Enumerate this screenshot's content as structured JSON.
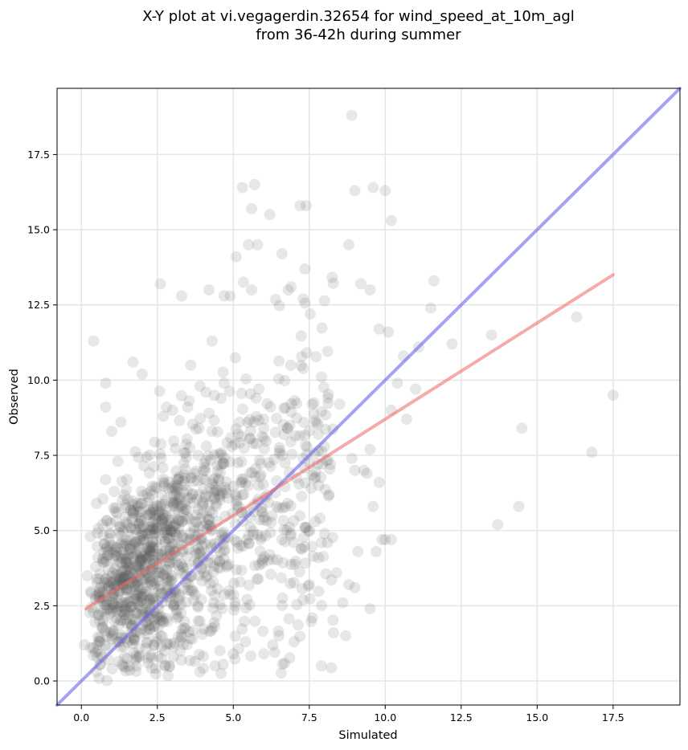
{
  "chart_data": {
    "type": "scatter",
    "title_lines": [
      "X-Y plot at vi.vegagerdin.32654 for wind_speed_at_10m_agl",
      "from 36-42h during summer"
    ],
    "xlabel": "Simulated",
    "ylabel": "Observed",
    "xlim": [
      -0.8,
      19.7
    ],
    "ylim": [
      -0.8,
      19.7
    ],
    "xticks": [
      0.0,
      2.5,
      5.0,
      7.5,
      10.0,
      12.5,
      15.0,
      17.5
    ],
    "yticks": [
      0.0,
      2.5,
      5.0,
      7.5,
      10.0,
      12.5,
      15.0,
      17.5
    ],
    "xtick_labels": [
      "0.0",
      "2.5",
      "5.0",
      "7.5",
      "10.0",
      "12.5",
      "15.0",
      "17.5"
    ],
    "ytick_labels": [
      "0.0",
      "2.5",
      "5.0",
      "7.5",
      "10.0",
      "12.5",
      "15.0",
      "17.5"
    ],
    "grid": true,
    "point_color": "#555555",
    "point_alpha": 0.14,
    "identity_line": {
      "x": [
        -0.8,
        19.7
      ],
      "y": [
        -0.8,
        19.7
      ],
      "color": "#6666ee"
    },
    "regression_line": {
      "x": [
        0.15,
        17.5
      ],
      "y": [
        2.4,
        13.5
      ],
      "color": "#ee6666"
    },
    "points": {
      "x": [
        8.9,
        5.7,
        5.3,
        9.6,
        10.0,
        10.2,
        6.2,
        5.6,
        5.8,
        5.1,
        6.6,
        5.5,
        3.3,
        7.2,
        7.4,
        7.3,
        4.2,
        2.6,
        4.7,
        4.9,
        5.6,
        6.9,
        9.5,
        9.2,
        8.8,
        9.0,
        9.8,
        10.1,
        11.6,
        12.2,
        13.5,
        16.3,
        17.5,
        16.8,
        14.5,
        14.4,
        13.7,
        10.2,
        10.7,
        11.1,
        10.4,
        10.6,
        10.2,
        11.5,
        11.0,
        0.4,
        0.8,
        0.8,
        1.0,
        1.3,
        1.7,
        2.0,
        2.7,
        3.5,
        3.6,
        4.1,
        4.3,
        1.2,
        1.5,
        0.5,
        0.3,
        0.2,
        0.6,
        1.0,
        1.9,
        2.2,
        2.9,
        3.9,
        4.4,
        5.0,
        5.4,
        6.0,
        6.3,
        6.5,
        7.0,
        7.6,
        7.9,
        8.3,
        8.7,
        9.0,
        9.5,
        9.7,
        9.9,
        10.0,
        9.6,
        9.8,
        7.8,
        7.9,
        7.5,
        7.3,
        8.4,
        8.6,
        8.8,
        9.1,
        8.0,
        7.7,
        7.4,
        6.9,
        6.6,
        6.2,
        5.9,
        9.5,
        9.4,
        9.3,
        9.0,
        8.9,
        8.2,
        8.0,
        7.8,
        8.5,
        6.0,
        5.2,
        4.7,
        4.6,
        3.9,
        3.0,
        2.8,
        0.1,
        0.4,
        0.5,
        0.9,
        1.1,
        1.4,
        1.8,
        2.1,
        2.4,
        2.6,
        2.3,
        3.1,
        3.3,
        1.7,
        2.0
      ],
      "y": [
        18.8,
        16.5,
        16.4,
        16.4,
        16.3,
        15.3,
        15.5,
        15.7,
        14.5,
        14.1,
        14.2,
        14.5,
        12.8,
        15.8,
        15.8,
        12.7,
        13.0,
        13.2,
        12.8,
        12.8,
        13.0,
        13.1,
        13.0,
        13.2,
        14.5,
        16.3,
        11.7,
        11.6,
        13.3,
        11.2,
        11.5,
        12.1,
        9.5,
        7.6,
        8.4,
        5.8,
        5.2,
        4.7,
        8.7,
        11.1,
        9.9,
        10.8,
        9.0,
        12.4,
        9.7,
        11.3,
        9.9,
        9.1,
        8.3,
        8.6,
        10.6,
        10.2,
        8.8,
        9.1,
        10.5,
        9.6,
        11.3,
        7.3,
        6.7,
        5.9,
        4.8,
        3.5,
        2.0,
        1.4,
        0.8,
        0.6,
        0.5,
        0.3,
        0.5,
        0.9,
        1.3,
        0.9,
        1.2,
        1.5,
        1.3,
        2.1,
        0.5,
        1.6,
        1.5,
        3.1,
        2.4,
        4.3,
        4.7,
        4.7,
        5.8,
        6.6,
        4.1,
        4.6,
        3.2,
        2.7,
        3.6,
        2.6,
        3.2,
        4.3,
        4.9,
        5.3,
        5.1,
        4.9,
        4.7,
        4.2,
        4.7,
        7.7,
        6.9,
        7.0,
        7.0,
        7.4,
        7.2,
        7.8,
        8.2,
        9.2,
        8.4,
        8.6,
        9.9,
        9.4,
        9.8,
        9.0,
        9.1,
        1.2,
        2.3,
        3.4,
        3.1,
        2.9,
        2.6,
        3.8,
        4.2,
        4.0,
        3.6,
        4.5,
        4.9,
        5.3,
        5.6,
        5.9
      ]
    }
  }
}
